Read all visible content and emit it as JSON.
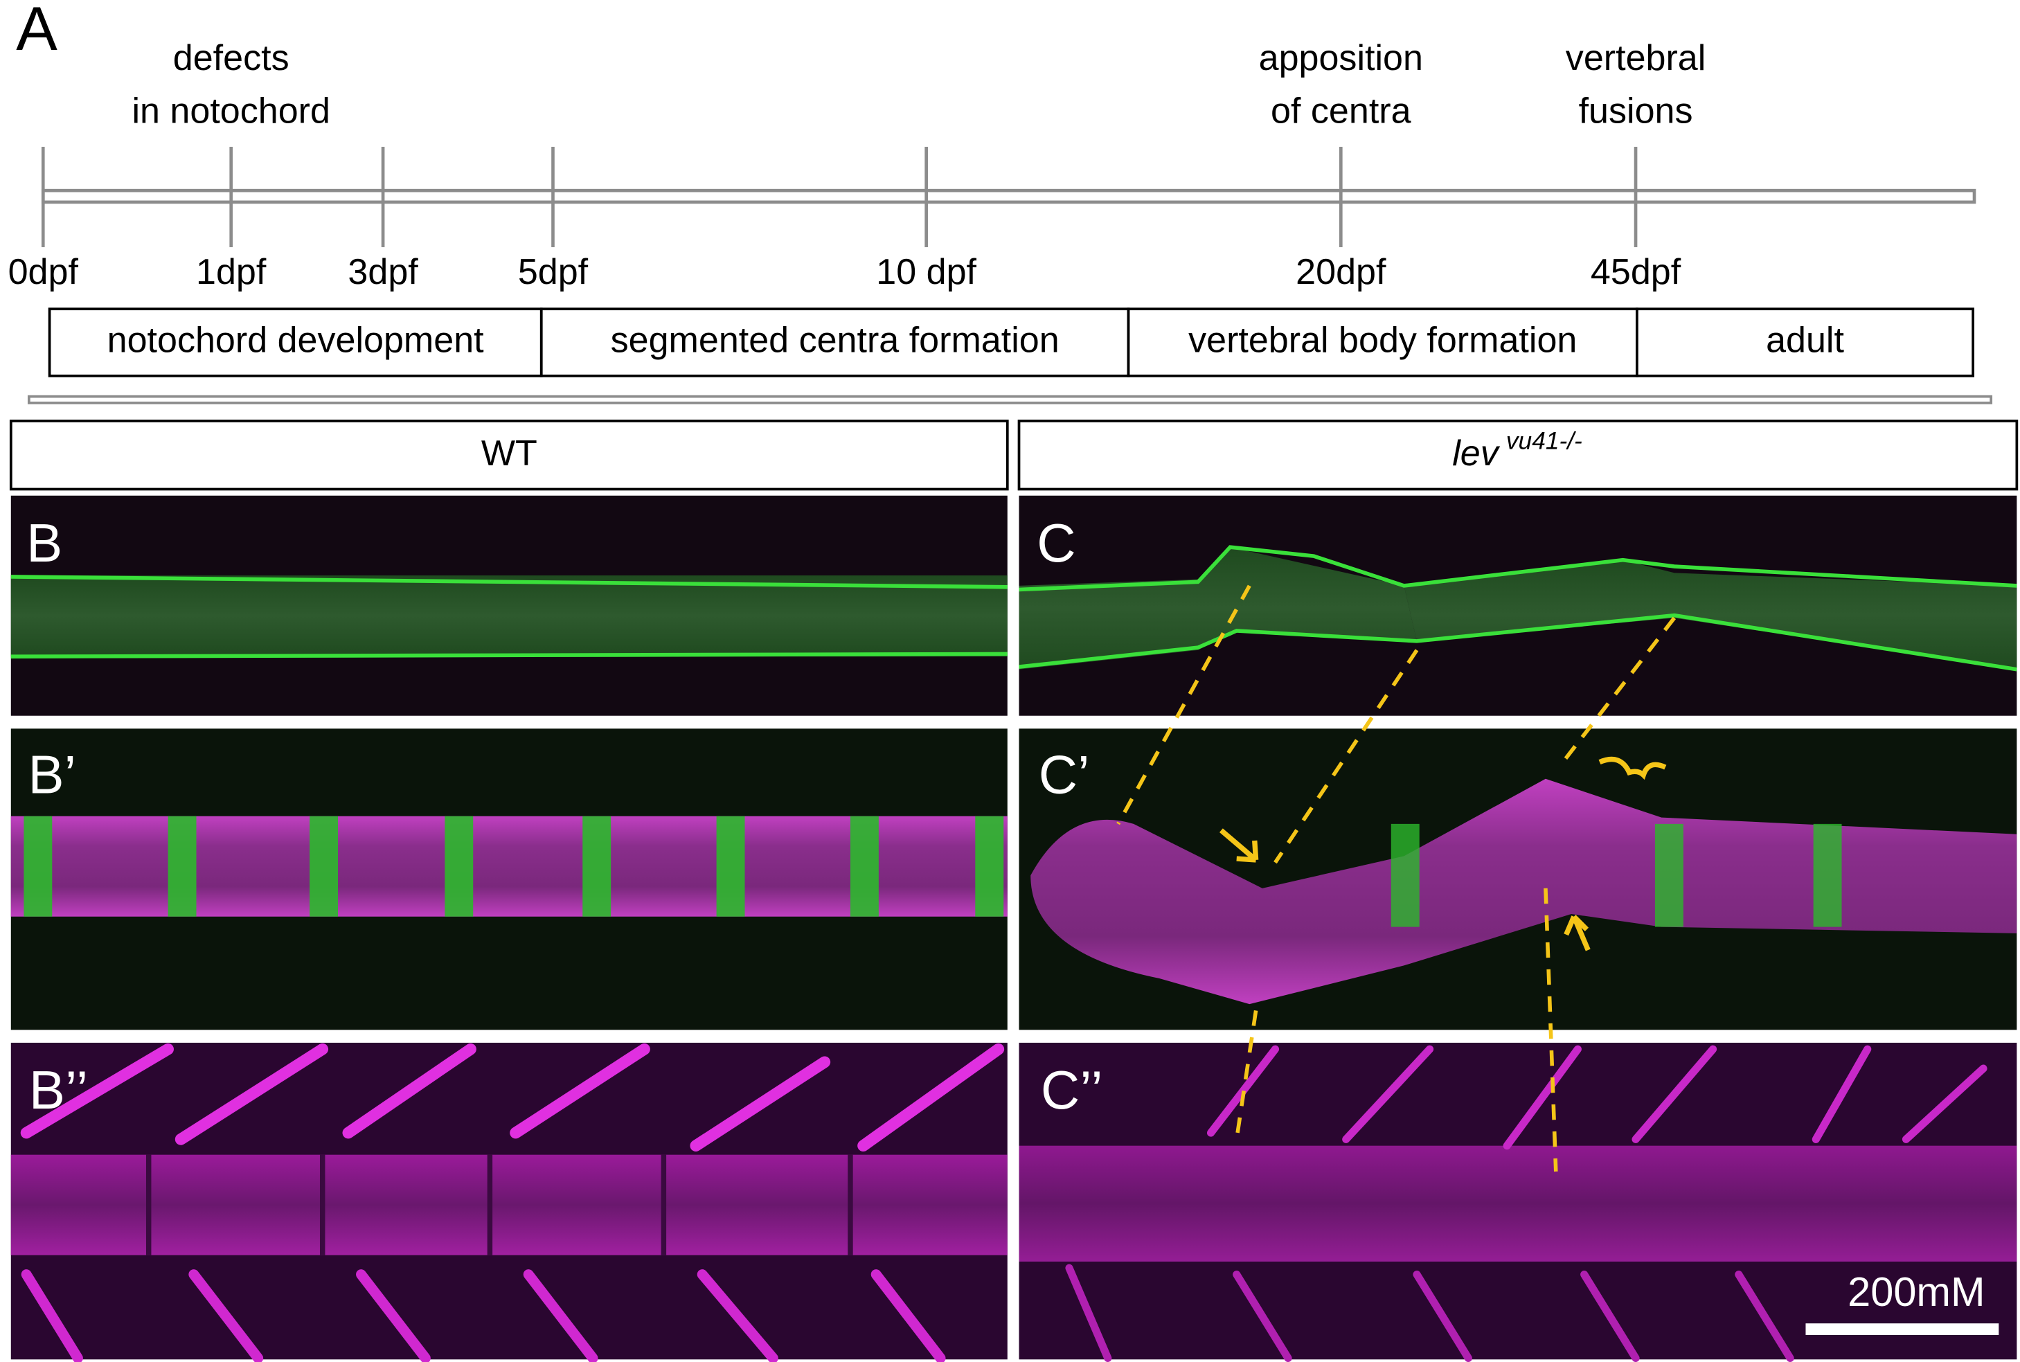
{
  "panel_a": {
    "label": "A",
    "annotations": [
      {
        "lines": [
          "defects",
          "in notochord"
        ]
      },
      {
        "lines": [
          "apposition",
          "of centra"
        ]
      },
      {
        "lines": [
          "vertebral",
          "fusions"
        ]
      }
    ],
    "ticks": [
      "0dpf",
      "1dpf",
      "3dpf",
      "5dpf",
      "10 dpf",
      "20dpf",
      "45dpf"
    ],
    "phases": [
      "notochord development",
      "segmented centra formation",
      "vertebral body formation",
      "adult"
    ]
  },
  "headers": {
    "wt": "WT",
    "mutant": {
      "gene": "lev",
      "allele": "vu41-/-"
    }
  },
  "panels": {
    "b": "B",
    "b_prime": "B’",
    "b_double_prime": "B’’",
    "c": "C",
    "c_prime": "C’",
    "c_double_prime": "C’’"
  },
  "scale_bar": "200mM"
}
